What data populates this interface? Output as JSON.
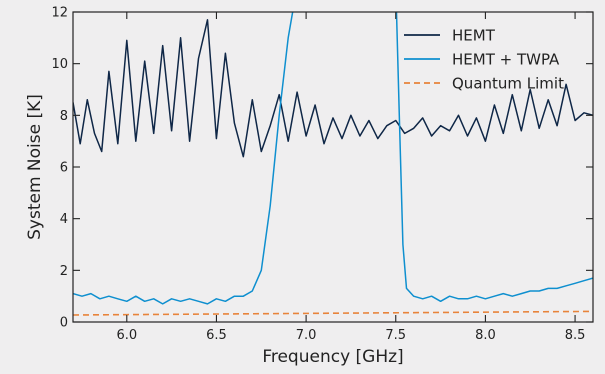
{
  "chart_data": {
    "type": "line",
    "title": "",
    "xlabel": "Frequency [GHz]",
    "ylabel": "System Noise [K]",
    "xlim": [
      5.7,
      8.6
    ],
    "ylim": [
      0,
      12
    ],
    "xticks": [
      6.0,
      6.5,
      7.0,
      7.5,
      8.0,
      8.5
    ],
    "xtick_labels": [
      "6.0",
      "6.5",
      "7.0",
      "7.5",
      "8.0",
      "8.5"
    ],
    "yticks": [
      0,
      2,
      4,
      6,
      8,
      10,
      12
    ],
    "ytick_labels": [
      "0",
      "2",
      "4",
      "6",
      "8",
      "10",
      "12"
    ],
    "grid": false,
    "legend_position": "top-right",
    "series": [
      {
        "name": "HEMT",
        "color": "#0f2747",
        "style": "solid",
        "x": [
          5.7,
          5.74,
          5.78,
          5.82,
          5.86,
          5.9,
          5.95,
          6.0,
          6.05,
          6.1,
          6.15,
          6.2,
          6.25,
          6.3,
          6.35,
          6.4,
          6.45,
          6.5,
          6.55,
          6.6,
          6.65,
          6.7,
          6.75,
          6.8,
          6.85,
          6.9,
          6.95,
          7.0,
          7.05,
          7.1,
          7.15,
          7.2,
          7.25,
          7.3,
          7.35,
          7.4,
          7.45,
          7.5,
          7.55,
          7.6,
          7.65,
          7.7,
          7.75,
          7.8,
          7.85,
          7.9,
          7.95,
          8.0,
          8.05,
          8.1,
          8.15,
          8.2,
          8.25,
          8.3,
          8.35,
          8.4,
          8.45,
          8.5,
          8.55,
          8.6
        ],
        "y": [
          8.5,
          6.9,
          8.6,
          7.3,
          6.6,
          9.7,
          6.9,
          10.9,
          7.0,
          10.1,
          7.3,
          10.7,
          7.4,
          11.0,
          7.0,
          10.2,
          11.7,
          7.1,
          10.4,
          7.7,
          6.4,
          8.6,
          6.6,
          7.6,
          8.8,
          7.0,
          8.9,
          7.2,
          8.4,
          6.9,
          7.9,
          7.1,
          8.0,
          7.2,
          7.8,
          7.1,
          7.6,
          7.8,
          7.3,
          7.5,
          7.9,
          7.2,
          7.6,
          7.4,
          8.0,
          7.2,
          7.9,
          7.0,
          8.4,
          7.3,
          8.8,
          7.4,
          9.0,
          7.5,
          8.6,
          7.6,
          9.2,
          7.8,
          8.1,
          8.0
        ]
      },
      {
        "name": "HEMT + TWPA",
        "color": "#0e8fcf",
        "style": "solid",
        "x": [
          5.7,
          5.75,
          5.8,
          5.85,
          5.9,
          5.95,
          6.0,
          6.05,
          6.1,
          6.15,
          6.2,
          6.25,
          6.3,
          6.35,
          6.4,
          6.45,
          6.5,
          6.55,
          6.6,
          6.65,
          6.7,
          6.75,
          6.8,
          6.85,
          6.9,
          6.95,
          7.5,
          7.52,
          7.54,
          7.56,
          7.6,
          7.65,
          7.7,
          7.75,
          7.8,
          7.85,
          7.9,
          7.95,
          8.0,
          8.05,
          8.1,
          8.15,
          8.2,
          8.25,
          8.3,
          8.35,
          8.4,
          8.45,
          8.5,
          8.55,
          8.6
        ],
        "y": [
          1.1,
          1.0,
          1.1,
          0.9,
          1.0,
          0.9,
          0.8,
          1.0,
          0.8,
          0.9,
          0.7,
          0.9,
          0.8,
          0.9,
          0.8,
          0.7,
          0.9,
          0.8,
          1.0,
          1.0,
          1.2,
          2.0,
          4.5,
          8.0,
          11.0,
          13.0,
          13.0,
          8.0,
          3.0,
          1.3,
          1.0,
          0.9,
          1.0,
          0.8,
          1.0,
          0.9,
          0.9,
          1.0,
          0.9,
          1.0,
          1.1,
          1.0,
          1.1,
          1.2,
          1.2,
          1.3,
          1.3,
          1.4,
          1.5,
          1.6,
          1.7
        ]
      },
      {
        "name": "Quantum Limit",
        "color": "#e8833a",
        "style": "dashed",
        "x": [
          5.7,
          8.6
        ],
        "y": [
          0.27,
          0.41
        ]
      }
    ]
  }
}
